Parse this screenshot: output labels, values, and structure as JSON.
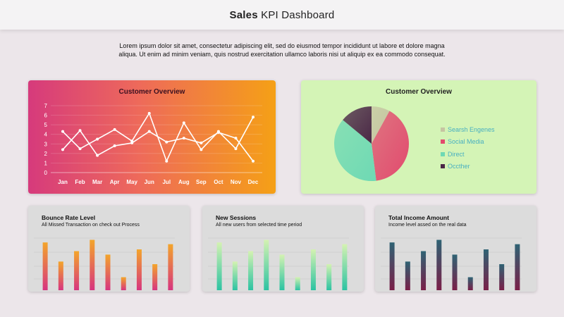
{
  "header": {
    "title_bold": "Sales",
    "title_rest": " KPI Dashboard"
  },
  "intro": {
    "line1": "Lorem ipsum dolor sit amet, consectetur adipiscing elit, sed do eiusmod tempor incididunt ut labore et dolore magna",
    "line2": "aliqua. Ut enim ad minim veniam, quis nostrud exercitation ullamco laboris nisi ut aliquip ex ea commodo consequat."
  },
  "line_card": {
    "title": "Customer Overview",
    "chart_data": {
      "type": "line",
      "categories": [
        "Jan",
        "Feb",
        "Mar",
        "Apr",
        "May",
        "Jun",
        "Jul",
        "Aug",
        "Sep",
        "Oct",
        "Nov",
        "Dec"
      ],
      "yticks": [
        0,
        1,
        2,
        3,
        4,
        5,
        6,
        7
      ],
      "ylim": [
        0,
        7
      ],
      "series": [
        {
          "values": [
            4.3,
            2.5,
            3.5,
            4.5,
            3.3,
            6.2,
            1.2,
            5.2,
            2.4,
            4.3,
            2.5,
            5.8
          ]
        },
        {
          "values": [
            2.4,
            4.4,
            1.8,
            2.8,
            3.1,
            4.3,
            3.2,
            3.6,
            3.1,
            4.2,
            3.6,
            1.2
          ]
        }
      ],
      "grid": true
    }
  },
  "pie_card": {
    "title": "Customer Overview",
    "chart_data": {
      "type": "pie",
      "slices": [
        {
          "label": "Searsh Engenes",
          "value": 8,
          "color": "#c6c4a2"
        },
        {
          "label": "Social Media",
          "value": 40,
          "color": "#e24a6e"
        },
        {
          "label": "Direct",
          "value": 38,
          "color": "#6ed9b4"
        },
        {
          "label": "Occther",
          "value": 14,
          "color": "#4a2746"
        }
      ]
    }
  },
  "small_cards": [
    {
      "title": "Bounce Rate Level",
      "subtitle": "All Missed Transaction on check out Process",
      "colors": {
        "top": "#f3a52b",
        "bottom": "#d7357f"
      },
      "chart_data": {
        "type": "bar",
        "values": [
          55,
          33,
          45,
          58,
          41,
          15,
          47,
          30,
          53
        ]
      }
    },
    {
      "title": "New Sessions",
      "subtitle": "All new users from selected time period",
      "colors": {
        "top": "#d4f2b2",
        "bottom": "#2cc3a2"
      },
      "chart_data": {
        "type": "bar",
        "values": [
          55,
          33,
          45,
          58,
          41,
          15,
          47,
          30,
          53
        ]
      }
    },
    {
      "title": "Total Income Amount",
      "subtitle": "Income level assed on the real data",
      "colors": {
        "top": "#2f6374",
        "bottom": "#7a1f48"
      },
      "chart_data": {
        "type": "bar",
        "values": [
          55,
          33,
          45,
          58,
          41,
          15,
          47,
          30,
          53
        ]
      }
    }
  ]
}
